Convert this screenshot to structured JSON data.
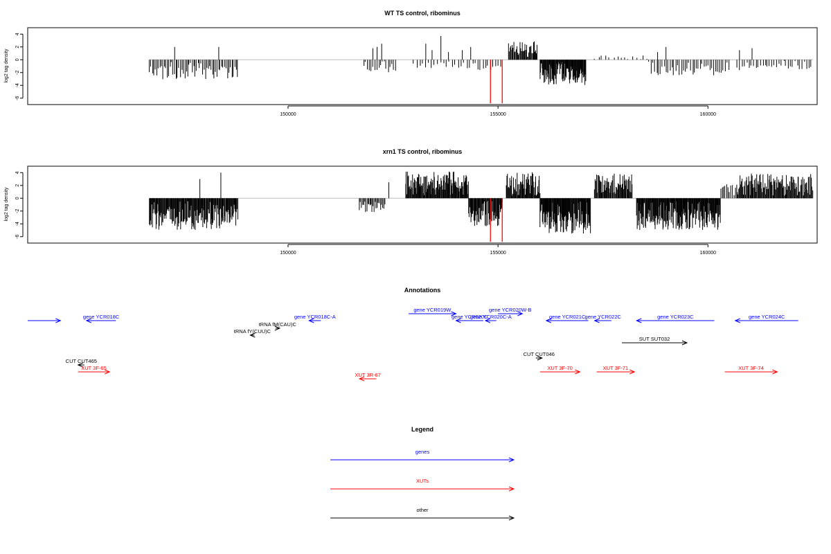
{
  "chart_data": [
    {
      "type": "bar",
      "title": "WT TS control, ribominus",
      "ylabel": "log2 tag density",
      "xlabel": "",
      "xlim": [
        143800,
        162600
      ],
      "ylim": [
        -7,
        5
      ],
      "x_ticks": [
        150000,
        155000,
        160000
      ],
      "x_tick_labels": [
        "150000",
        "155000",
        "160000"
      ],
      "y_ticks": [
        -6,
        -4,
        -2,
        0,
        2,
        4
      ],
      "y_tick_labels": [
        "-6",
        "-4",
        "-2",
        "0",
        "2",
        "4"
      ],
      "baseline": 0,
      "bar_color": "#000000",
      "highlight_color": "#ff0000",
      "highlight_bars": [
        {
          "x": 154820,
          "y": -6.8
        },
        {
          "x": 155100,
          "y": -6.8
        }
      ],
      "regions": [
        {
          "start": 146700,
          "end": 148800,
          "spacing": 35,
          "amplitude": -2.8,
          "positive": [
            [
              147300,
              2.0
            ],
            [
              148350,
              2.0
            ]
          ]
        },
        {
          "start": 151800,
          "end": 152600,
          "spacing": 45,
          "amplitude": -1.8,
          "positive": [
            [
              152020,
              1.8
            ],
            [
              152120,
              2.0
            ],
            [
              152230,
              2.5
            ]
          ]
        },
        {
          "start": 153000,
          "end": 154400,
          "spacing": 70,
          "amplitude": -1.2,
          "positive": [
            [
              153280,
              2.5
            ],
            [
              153430,
              1.5
            ],
            [
              153640,
              3.7
            ],
            [
              153820,
              1.2
            ],
            [
              154150,
              1.5
            ],
            [
              154350,
              2.0
            ]
          ]
        },
        {
          "start": 154400,
          "end": 155100,
          "spacing": 60,
          "amplitude": -1.5,
          "positive": []
        },
        {
          "start": 155250,
          "end": 155950,
          "spacing": 18,
          "amplitude": 2.6,
          "positive": []
        },
        {
          "start": 156000,
          "end": 157100,
          "spacing": 12,
          "amplitude": -3.6,
          "positive": []
        },
        {
          "start": 157300,
          "end": 158600,
          "spacing": 90,
          "amplitude": 0.6,
          "positive": []
        },
        {
          "start": 158600,
          "end": 160500,
          "spacing": 45,
          "amplitude": -2.2,
          "positive": [
            [
              158800,
              1.2
            ],
            [
              159000,
              2.0
            ]
          ]
        },
        {
          "start": 160700,
          "end": 162500,
          "spacing": 55,
          "amplitude": -1.5,
          "positive": [
            [
              160750,
              1.5
            ],
            [
              161050,
              1.8
            ]
          ]
        }
      ]
    },
    {
      "type": "bar",
      "title": "xrn1 TS control, ribominus",
      "ylabel": "log2 tag density",
      "xlabel": "",
      "xlim": [
        143800,
        162600
      ],
      "ylim": [
        -7,
        5
      ],
      "x_ticks": [
        150000,
        155000,
        160000
      ],
      "x_tick_labels": [
        "150000",
        "155000",
        "160000"
      ],
      "y_ticks": [
        -6,
        -4,
        -2,
        0,
        2,
        4
      ],
      "y_tick_labels": [
        "-6",
        "-4",
        "-2",
        "0",
        "2",
        "4"
      ],
      "baseline": 0,
      "bar_color": "#000000",
      "highlight_color": "#ff0000",
      "highlight_bars": [
        {
          "x": 154820,
          "y": -6.8
        },
        {
          "x": 155100,
          "y": -6.8
        }
      ],
      "regions": [
        {
          "start": 146700,
          "end": 148800,
          "spacing": 14,
          "amplitude": -4.5,
          "positive": [
            [
              147900,
              3.0
            ],
            [
              148400,
              4.0
            ]
          ]
        },
        {
          "start": 151700,
          "end": 152300,
          "spacing": 25,
          "amplitude": -2.0,
          "positive": [
            [
              152400,
              2.5
            ]
          ]
        },
        {
          "start": 152800,
          "end": 154300,
          "spacing": 14,
          "amplitude": 3.8,
          "positive": []
        },
        {
          "start": 154300,
          "end": 155100,
          "spacing": 14,
          "amplitude": -4.0,
          "positive": []
        },
        {
          "start": 155200,
          "end": 156000,
          "spacing": 14,
          "amplitude": 3.8,
          "positive": []
        },
        {
          "start": 156000,
          "end": 157200,
          "spacing": 12,
          "amplitude": -5.0,
          "positive": []
        },
        {
          "start": 157300,
          "end": 158200,
          "spacing": 16,
          "amplitude": 3.5,
          "positive": []
        },
        {
          "start": 158300,
          "end": 160300,
          "spacing": 12,
          "amplitude": -4.5,
          "positive": []
        },
        {
          "start": 160300,
          "end": 160700,
          "spacing": 35,
          "amplitude": 2.0,
          "positive": []
        },
        {
          "start": 160700,
          "end": 162500,
          "spacing": 16,
          "amplitude": 3.5,
          "positive": []
        }
      ]
    },
    {
      "type": "annotation",
      "title": "Annotations",
      "features": [
        {
          "label": "",
          "kind": "genes",
          "strand": "+",
          "start": 143800,
          "end": 144580
        },
        {
          "label": "gene YCR018C",
          "kind": "genes",
          "strand": "-",
          "start": 145200,
          "end": 145900
        },
        {
          "label": "tRNA fM(CAU)C",
          "kind": "other",
          "strand": "+",
          "start": 149700,
          "end": 149800
        },
        {
          "label": "gene YCR018C-A",
          "kind": "genes",
          "strand": "-",
          "start": 150500,
          "end": 150780
        },
        {
          "label": "tRNA fY(CUU)C",
          "kind": "other",
          "strand": "-",
          "start": 149100,
          "end": 149200
        },
        {
          "label": "gene YCR019W",
          "kind": "genes",
          "strand": "+",
          "start": 152870,
          "end": 154000
        },
        {
          "label": "gene YCR020C",
          "kind": "genes",
          "strand": "-",
          "start": 154000,
          "end": 154650
        },
        {
          "label": "gene YCR020C-A",
          "kind": "genes",
          "strand": "-",
          "start": 154700,
          "end": 154960
        },
        {
          "label": "gene YCR020W-B",
          "kind": "genes",
          "strand": "+",
          "start": 155000,
          "end": 155580
        },
        {
          "label": "gene YCR021C",
          "kind": "genes",
          "strand": "-",
          "start": 156150,
          "end": 157150
        },
        {
          "label": "gene YCR022C",
          "kind": "genes",
          "strand": "-",
          "start": 157300,
          "end": 157700
        },
        {
          "label": "gene YCR023C",
          "kind": "genes",
          "strand": "-",
          "start": 158300,
          "end": 160150
        },
        {
          "label": "gene YCR024C",
          "kind": "genes",
          "strand": "-",
          "start": 160650,
          "end": 162150
        },
        {
          "label": "SUT SUT032",
          "kind": "other",
          "strand": "+",
          "start": 157950,
          "end": 159500
        },
        {
          "label": "CUT CUT465",
          "kind": "other",
          "strand": "-",
          "start": 145000,
          "end": 145150
        },
        {
          "label": "CUT CUT046",
          "kind": "other",
          "strand": "+",
          "start": 155900,
          "end": 156050
        },
        {
          "label": "XUT 3F-65",
          "kind": "XUTs",
          "strand": "+",
          "start": 145000,
          "end": 145750
        },
        {
          "label": "XUT 3R-67",
          "kind": "XUTs",
          "strand": "-",
          "start": 151700,
          "end": 152100
        },
        {
          "label": "XUT 3F-70",
          "kind": "XUTs",
          "strand": "+",
          "start": 156000,
          "end": 156950
        },
        {
          "label": "XUT 3F-71",
          "kind": "XUTs",
          "strand": "+",
          "start": 157350,
          "end": 158250
        },
        {
          "label": "XUT 3F-74",
          "kind": "XUTs",
          "strand": "+",
          "start": 160400,
          "end": 161650
        }
      ]
    },
    {
      "type": "legend",
      "title": "Legend",
      "entries": [
        {
          "name": "genes",
          "color": "#0000ff"
        },
        {
          "name": "XUTs",
          "color": "#ff0000"
        },
        {
          "name": "other",
          "color": "#000000"
        }
      ]
    }
  ]
}
